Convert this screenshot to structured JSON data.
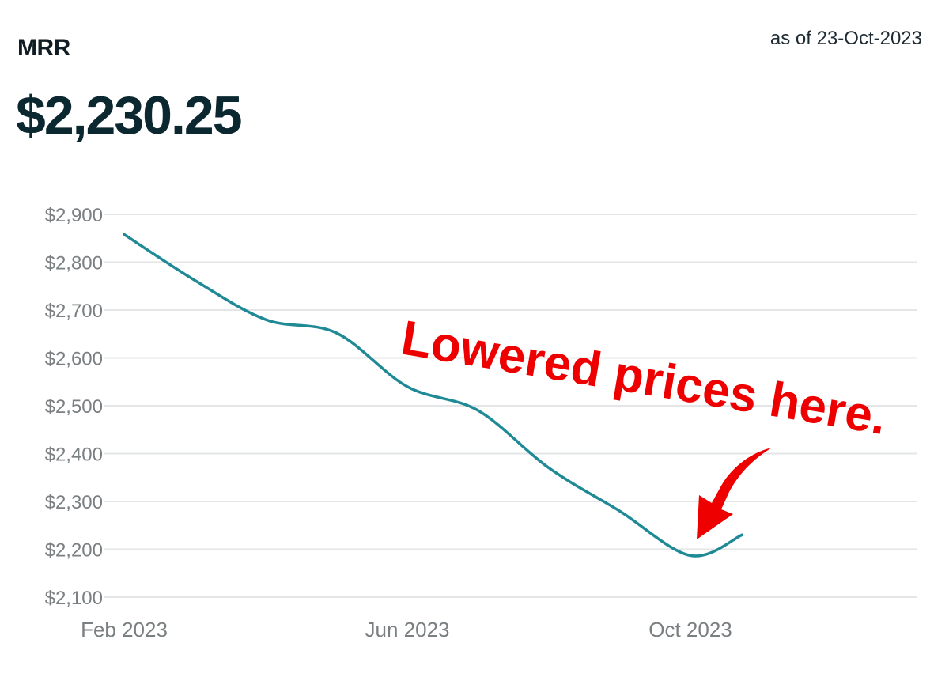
{
  "header": {
    "metric_label": "MRR",
    "as_of": "as of 23-Oct-2023",
    "value": "$2,230.25"
  },
  "colors": {
    "line": "#1f8a96",
    "grid": "#e3e5e6",
    "annotation": "#ee0000",
    "text_dark": "#0b2830",
    "tick_text": "#7a7f82"
  },
  "annotation": {
    "text": "Lowered prices here.",
    "arrow": "curved-arrow-pointing-down-left"
  },
  "chart_data": {
    "type": "line",
    "title": "MRR",
    "xlabel": "",
    "ylabel": "",
    "ylim": [
      2100,
      2900
    ],
    "yticks": [
      "$2,900",
      "$2,800",
      "$2,700",
      "$2,600",
      "$2,500",
      "$2,400",
      "$2,300",
      "$2,200",
      "$2,100"
    ],
    "ytick_values": [
      2900,
      2800,
      2700,
      2600,
      2500,
      2400,
      2300,
      2200,
      2100
    ],
    "xticks": [
      "Feb 2023",
      "Jun 2023",
      "Oct 2023"
    ],
    "xtick_months": [
      0,
      4,
      8
    ],
    "grid": true,
    "legend": "none",
    "series": [
      {
        "x": [
          "2023-02",
          "2023-03",
          "2023-04",
          "2023-05",
          "2023-06",
          "2023-07",
          "2023-08",
          "2023-09",
          "2023-10",
          "2023-10-23"
        ],
        "x_month_index": [
          0,
          1,
          2,
          3,
          4,
          5,
          6,
          7,
          8,
          8.73
        ],
        "values": [
          2858,
          2762,
          2680,
          2652,
          2540,
          2490,
          2370,
          2280,
          2187,
          2230.25
        ]
      }
    ]
  }
}
